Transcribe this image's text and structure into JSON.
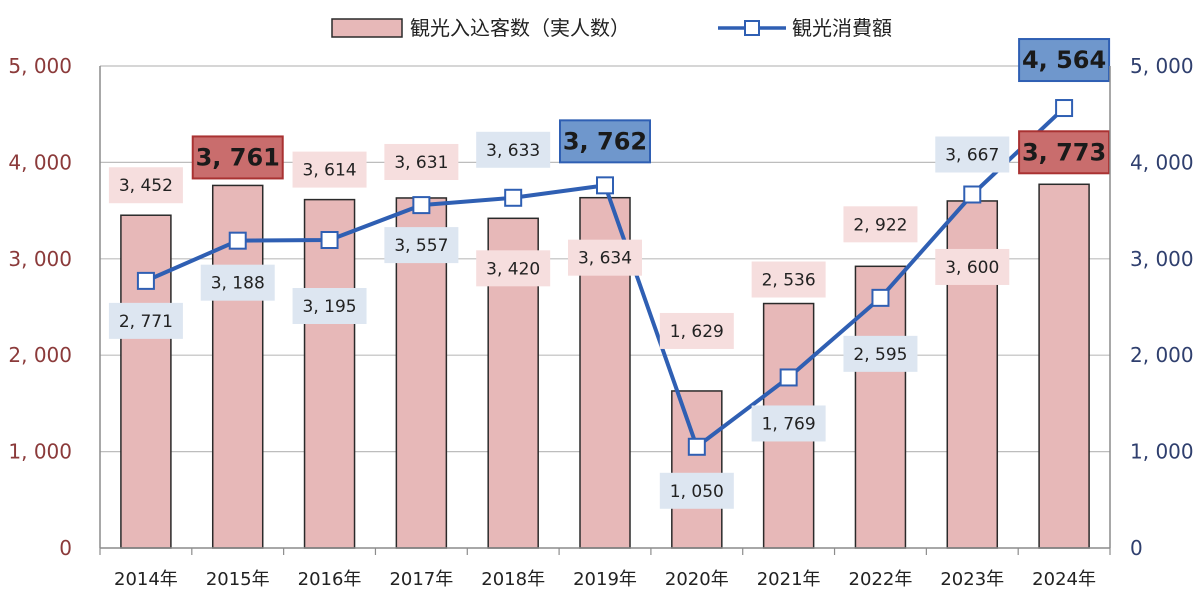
{
  "chart_data": {
    "type": "bar+line",
    "categories": [
      "2014年",
      "2015年",
      "2016年",
      "2017年",
      "2018年",
      "2019年",
      "2020年",
      "2021年",
      "2022年",
      "2023年",
      "2024年"
    ],
    "series": [
      {
        "name": "観光入込客数（実人数）",
        "type": "bar",
        "axis": "left",
        "values": [
          3452,
          3761,
          3614,
          3631,
          3420,
          3634,
          1629,
          2536,
          2922,
          3600,
          3773
        ],
        "labels": [
          "3, 452",
          "3, 761",
          "3, 614",
          "3, 631",
          "3, 420",
          "3, 634",
          "1, 629",
          "2, 536",
          "2, 922",
          "3, 600",
          "3, 773"
        ],
        "highlight": [
          1,
          10
        ]
      },
      {
        "name": "観光消費額",
        "type": "line",
        "axis": "right",
        "values": [
          2771,
          3188,
          3195,
          3557,
          3633,
          3762,
          1050,
          1769,
          2595,
          3667,
          4564
        ],
        "labels": [
          "2, 771",
          "3, 188",
          "3, 195",
          "3, 557",
          "3, 633",
          "3, 762",
          "1, 050",
          "1, 769",
          "2, 595",
          "3, 667",
          "4, 564"
        ],
        "highlight": [
          5,
          10
        ]
      }
    ],
    "y_left": {
      "range": [
        0,
        5000
      ],
      "ticks": [
        "0",
        "1, 000",
        "2, 000",
        "3, 000",
        "4, 000",
        "5, 000"
      ]
    },
    "y_right": {
      "range": [
        0,
        5000
      ],
      "ticks": [
        "0",
        "1, 000",
        "2, 000",
        "3, 000",
        "4, 000",
        "5, 000"
      ]
    },
    "grid": true,
    "legend": "top-center",
    "colors": {
      "bar_fill": "#e7b8b8",
      "bar_stroke": "#2a2a2a",
      "line": "#2f5fb3",
      "bar_label_bg": "#f6dede",
      "line_label_bg": "#dde6f1",
      "bar_highlight_bg": "#c96d6d",
      "bar_highlight_border": "#a93232",
      "line_highlight_bg": "#6f97cc",
      "line_highlight_border": "#2f5fb3",
      "left_axis_text": "#8b3a3a",
      "right_axis_text": "#2f3f6e"
    }
  }
}
